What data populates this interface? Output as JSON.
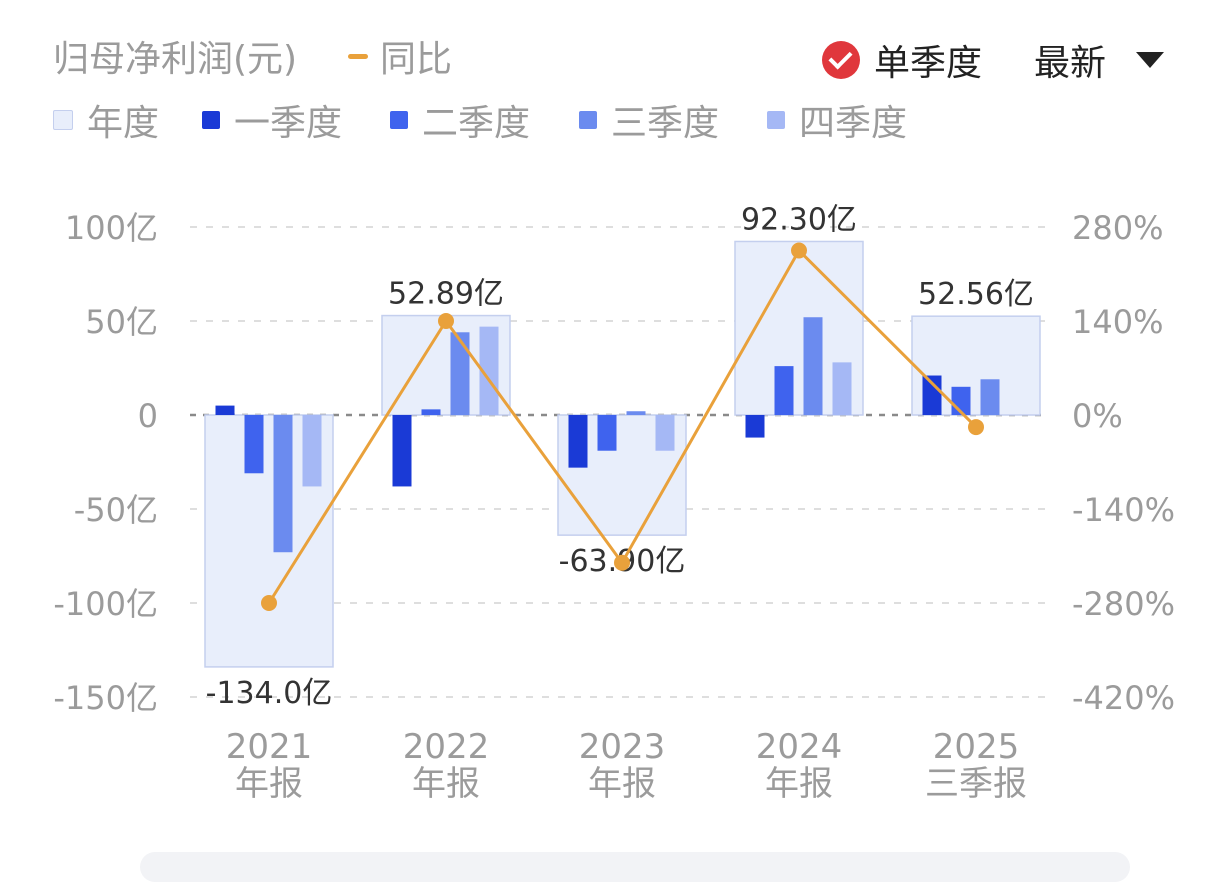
{
  "header": {
    "title": "归母净利润(元)",
    "yoy_label": "同比",
    "toggle_label": "单季度",
    "period_label": "最新"
  },
  "legend": [
    {
      "label": "年度",
      "color": "#e8eefb"
    },
    {
      "label": "一季度",
      "color": "#1a3ad6"
    },
    {
      "label": "二季度",
      "color": "#3f63ee"
    },
    {
      "label": "三季度",
      "color": "#6b8bef"
    },
    {
      "label": "四季度",
      "color": "#a5b8f5"
    }
  ],
  "chart_data": {
    "type": "bar",
    "categories": [
      [
        "2021",
        "年报"
      ],
      [
        "2022",
        "年报"
      ],
      [
        "2023",
        "年报"
      ],
      [
        "2024",
        "年报"
      ],
      [
        "2025",
        "三季报"
      ]
    ],
    "annual": {
      "name": "年度",
      "values": [
        -134.0,
        52.89,
        -63.9,
        92.3,
        52.56
      ],
      "labels": [
        "-134.0亿",
        "52.89亿",
        "-63.90亿",
        "92.30亿",
        "52.56亿"
      ]
    },
    "quarters": [
      {
        "name": "一季度",
        "values": [
          5,
          -38,
          -28,
          -12,
          21
        ]
      },
      {
        "name": "二季度",
        "values": [
          -31,
          3,
          -19,
          26,
          15
        ]
      },
      {
        "name": "三季度",
        "values": [
          -73,
          44,
          2,
          52,
          19
        ]
      },
      {
        "name": "四季度",
        "values": [
          -38,
          47,
          -19,
          28,
          null
        ]
      }
    ],
    "yoy": {
      "name": "同比",
      "values": [
        -280,
        140,
        -220,
        245,
        -18
      ]
    },
    "y_left": {
      "ticks": [
        100,
        50,
        0,
        -50,
        -100,
        -150
      ],
      "tick_labels": [
        "100亿",
        "50亿",
        "0",
        "-50亿",
        "-100亿",
        "-150亿"
      ],
      "ylim": [
        -150,
        100
      ]
    },
    "y_right": {
      "ticks": [
        280,
        140,
        0,
        -140,
        -280,
        -420
      ],
      "tick_labels": [
        "280%",
        "140%",
        "0%",
        "-140%",
        "-280%",
        "-420%"
      ],
      "ylim": [
        -420,
        280
      ]
    },
    "grid": true
  }
}
